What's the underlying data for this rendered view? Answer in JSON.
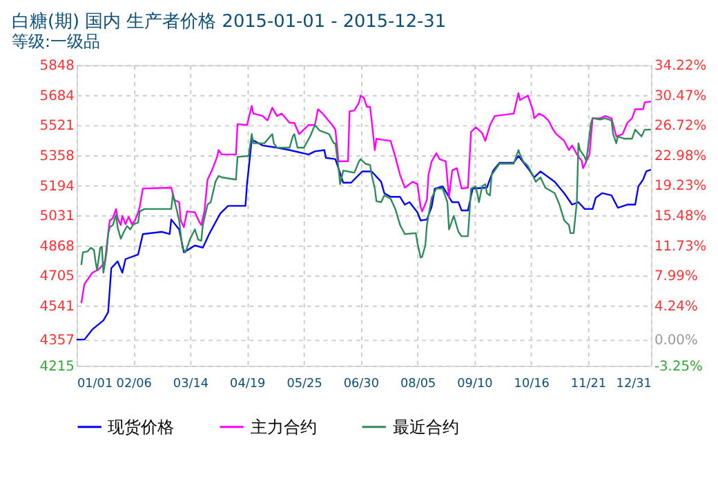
{
  "chart_data": {
    "type": "line",
    "title": "白糖(期) 国内 生产者价格 2015-01-01 - 2015-12-31",
    "subtitle": "等级:一级品",
    "xlim": [
      "2015-01-01",
      "2015-12-31"
    ],
    "xticks": [
      {
        "value": "2015-01-01",
        "label": "01/01"
      },
      {
        "value": "2015-02-06",
        "label": "02/06"
      },
      {
        "value": "2015-03-14",
        "label": "03/14"
      },
      {
        "value": "2015-04-19",
        "label": "04/19"
      },
      {
        "value": "2015-05-25",
        "label": "05/25"
      },
      {
        "value": "2015-06-30",
        "label": "06/30"
      },
      {
        "value": "2015-08-05",
        "label": "08/05"
      },
      {
        "value": "2015-09-10",
        "label": "09/10"
      },
      {
        "value": "2015-10-16",
        "label": "10/16"
      },
      {
        "value": "2015-11-21",
        "label": "11/21"
      },
      {
        "value": "2015-12-31",
        "label": "12/31"
      }
    ],
    "ylim": [
      4215,
      5848
    ],
    "yticks": [
      4215,
      4357,
      4541,
      4705,
      4868,
      5031,
      5194,
      5358,
      5521,
      5684,
      5848
    ],
    "y2lim": [
      -3.25,
      34.22
    ],
    "y2ticks": [
      {
        "value": -3.25,
        "label": "-3.25%"
      },
      {
        "value": 0,
        "label": "0.00%"
      },
      {
        "value": 4.24,
        "label": "4.24%"
      },
      {
        "value": 7.99,
        "label": "7.99%"
      },
      {
        "value": 11.73,
        "label": "11.73%"
      },
      {
        "value": 15.48,
        "label": "15.48%"
      },
      {
        "value": 19.23,
        "label": "19.23%"
      },
      {
        "value": 22.98,
        "label": "22.98%"
      },
      {
        "value": 26.72,
        "label": "26.72%"
      },
      {
        "value": 30.47,
        "label": "30.47%"
      },
      {
        "value": 34.22,
        "label": "34.22%"
      }
    ],
    "grid": true,
    "legend": "bottom",
    "marker": "none",
    "line_style": "solid",
    "series": [
      {
        "name": "现货价格",
        "color": "#0000ff",
        "x": [
          "2015-01-01",
          "2015-01-06",
          "2015-01-11",
          "2015-01-18",
          "2015-01-21",
          "2015-01-23",
          "2015-01-27",
          "2015-01-30",
          "2015-02-01",
          "2015-02-09",
          "2015-02-12",
          "2015-02-24",
          "2015-03-01",
          "2015-03-02",
          "2015-03-07",
          "2015-03-10",
          "2015-03-17",
          "2015-03-22",
          "2015-03-26",
          "2015-04-02",
          "2015-04-07",
          "2015-04-18",
          "2015-04-19",
          "2015-04-22",
          "2015-04-29",
          "2015-05-08",
          "2015-05-16",
          "2015-05-28",
          "2015-06-01",
          "2015-06-07",
          "2015-06-08",
          "2015-06-14",
          "2015-06-19",
          "2015-06-24",
          "2015-07-01",
          "2015-07-07",
          "2015-07-13",
          "2015-07-15",
          "2015-07-19",
          "2015-07-25",
          "2015-07-28",
          "2015-07-31",
          "2015-08-05",
          "2015-08-07",
          "2015-08-11",
          "2015-08-14",
          "2015-08-16",
          "2015-08-21",
          "2015-08-27",
          "2015-08-31",
          "2015-09-02",
          "2015-09-06",
          "2015-09-09",
          "2015-09-18",
          "2015-09-22",
          "2015-09-26",
          "2015-10-05",
          "2015-10-08",
          "2015-10-14",
          "2015-10-18",
          "2015-10-22",
          "2015-10-31",
          "2015-11-06",
          "2015-11-11",
          "2015-11-15",
          "2015-11-19",
          "2015-11-24",
          "2015-11-26",
          "2015-11-30",
          "2015-12-06",
          "2015-12-10",
          "2015-12-16",
          "2015-12-21",
          "2015-12-23",
          "2015-12-26",
          "2015-12-28",
          "2015-12-31"
        ],
        "values": [
          4357,
          4357,
          4412,
          4461,
          4506,
          4745,
          4782,
          4720,
          4794,
          4819,
          4930,
          4942,
          4930,
          5009,
          4955,
          4831,
          4868,
          4856,
          4930,
          5041,
          5083,
          5083,
          5201,
          5443,
          5411,
          5399,
          5386,
          5362,
          5379,
          5386,
          5344,
          5337,
          5209,
          5209,
          5270,
          5270,
          5214,
          5152,
          5132,
          5132,
          5090,
          5103,
          5048,
          5004,
          5009,
          5078,
          5177,
          5189,
          5103,
          5103,
          5058,
          5058,
          5177,
          5182,
          5275,
          5317,
          5317,
          5354,
          5288,
          5238,
          5270,
          5214,
          5152,
          5090,
          5103,
          5066,
          5066,
          5127,
          5152,
          5140,
          5073,
          5090,
          5090,
          5189,
          5226,
          5270,
          5280
        ]
      },
      {
        "name": "主力合约",
        "color": "#ff00ff",
        "x": [
          "2015-01-04",
          "2015-01-05",
          "2015-01-06",
          "2015-01-08",
          "2015-01-11",
          "2015-01-15",
          "2015-01-17",
          "2015-01-19",
          "2015-01-21",
          "2015-01-22",
          "2015-01-24",
          "2015-01-26",
          "2015-01-27",
          "2015-01-29",
          "2015-01-30",
          "2015-02-01",
          "2015-02-03",
          "2015-02-05",
          "2015-02-07",
          "2015-02-09",
          "2015-02-10",
          "2015-02-12",
          "2015-03-02",
          "2015-03-04",
          "2015-03-07",
          "2015-03-08",
          "2015-03-10",
          "2015-03-12",
          "2015-03-17",
          "2015-03-20",
          "2015-03-21",
          "2015-03-23",
          "2015-03-25",
          "2015-03-28",
          "2015-03-31",
          "2015-04-01",
          "2015-04-03",
          "2015-04-12",
          "2015-04-13",
          "2015-04-19",
          "2015-04-22",
          "2015-04-23",
          "2015-04-29",
          "2015-05-02",
          "2015-05-05",
          "2015-05-08",
          "2015-05-11",
          "2015-05-13",
          "2015-05-16",
          "2015-05-19",
          "2015-05-22",
          "2015-05-25",
          "2015-05-28",
          "2015-06-01",
          "2015-06-03",
          "2015-06-06",
          "2015-06-12",
          "2015-06-14",
          "2015-06-16",
          "2015-06-22",
          "2015-06-23",
          "2015-06-26",
          "2015-06-29",
          "2015-06-30",
          "2015-07-02",
          "2015-07-04",
          "2015-07-06",
          "2015-07-07",
          "2015-07-09",
          "2015-07-10",
          "2015-07-13",
          "2015-07-19",
          "2015-07-22",
          "2015-07-25",
          "2015-07-28",
          "2015-08-02",
          "2015-08-05",
          "2015-08-07",
          "2015-08-08",
          "2015-08-11",
          "2015-08-12",
          "2015-08-14",
          "2015-08-17",
          "2015-08-19",
          "2015-08-23",
          "2015-08-25",
          "2015-08-27",
          "2015-08-30",
          "2015-09-02",
          "2015-09-06",
          "2015-09-08",
          "2015-09-11",
          "2015-09-15",
          "2015-09-17",
          "2015-09-20",
          "2015-09-23",
          "2015-10-05",
          "2015-10-08",
          "2015-10-09",
          "2015-10-14",
          "2015-10-17",
          "2015-10-18",
          "2015-10-21",
          "2015-10-24",
          "2015-10-27",
          "2015-10-30",
          "2015-11-01",
          "2015-11-06",
          "2015-11-09",
          "2015-11-11",
          "2015-11-15",
          "2015-11-17",
          "2015-11-18",
          "2015-11-20",
          "2015-11-22",
          "2015-11-24",
          "2015-11-29",
          "2015-12-02",
          "2015-12-06",
          "2015-12-09",
          "2015-12-13",
          "2015-12-16",
          "2015-12-19",
          "2015-12-21",
          "2015-12-26",
          "2015-12-27",
          "2015-12-31"
        ],
        "values": [
          4555,
          4609,
          4659,
          4683,
          4720,
          4738,
          4757,
          4782,
          4930,
          5004,
          5016,
          5066,
          5016,
          4979,
          5029,
          4984,
          5024,
          4984,
          5004,
          5048,
          5078,
          5177,
          5182,
          5115,
          5103,
          5004,
          4967,
          5053,
          5048,
          4992,
          4979,
          5053,
          5226,
          5280,
          5349,
          5386,
          5362,
          5362,
          5527,
          5522,
          5626,
          5584,
          5571,
          5547,
          5616,
          5571,
          5584,
          5564,
          5534,
          5534,
          5473,
          5497,
          5522,
          5522,
          5608,
          5584,
          5522,
          5497,
          5325,
          5325,
          5596,
          5601,
          5645,
          5682,
          5670,
          5621,
          5621,
          5547,
          5386,
          5448,
          5443,
          5436,
          5349,
          5251,
          5182,
          5214,
          5201,
          5078,
          5053,
          5115,
          5251,
          5325,
          5369,
          5337,
          5325,
          5127,
          5275,
          5288,
          5177,
          5182,
          5485,
          5510,
          5478,
          5436,
          5522,
          5571,
          5584,
          5695,
          5658,
          5682,
          5608,
          5559,
          5584,
          5571,
          5547,
          5497,
          5473,
          5436,
          5386,
          5411,
          5349,
          5330,
          5288,
          5325,
          5362,
          5559,
          5559,
          5571,
          5559,
          5460,
          5473,
          5534,
          5559,
          5608,
          5608,
          5645,
          5650
        ]
      },
      {
        "name": "最近合约",
        "color": "#2e8b57",
        "x": [
          "2015-01-04",
          "2015-01-05",
          "2015-01-08",
          "2015-01-10",
          "2015-01-12",
          "2015-01-13",
          "2015-01-14",
          "2015-01-16",
          "2015-01-17",
          "2015-01-18",
          "2015-01-20",
          "2015-01-21",
          "2015-01-22",
          "2015-01-24",
          "2015-01-26",
          "2015-01-27",
          "2015-01-29",
          "2015-01-31",
          "2015-02-02",
          "2015-02-04",
          "2015-02-06",
          "2015-02-09",
          "2015-02-10",
          "2015-02-13",
          "2015-03-02",
          "2015-03-03",
          "2015-03-05",
          "2015-03-07",
          "2015-03-09",
          "2015-03-11",
          "2015-03-14",
          "2015-03-17",
          "2015-03-19",
          "2015-03-21",
          "2015-03-22",
          "2015-03-25",
          "2015-03-27",
          "2015-03-30",
          "2015-04-01",
          "2015-04-03",
          "2015-04-12",
          "2015-04-13",
          "2015-04-20",
          "2015-04-22",
          "2015-04-23",
          "2015-04-30",
          "2015-05-05",
          "2015-05-06",
          "2015-05-08",
          "2015-05-16",
          "2015-05-18",
          "2015-05-19",
          "2015-05-21",
          "2015-05-25",
          "2015-05-29",
          "2015-06-01",
          "2015-06-04",
          "2015-06-10",
          "2015-06-13",
          "2015-06-14",
          "2015-06-16",
          "2015-06-17",
          "2015-06-19",
          "2015-06-26",
          "2015-06-29",
          "2015-06-30",
          "2015-07-03",
          "2015-07-06",
          "2015-07-07",
          "2015-07-09",
          "2015-07-10",
          "2015-07-13",
          "2015-07-15",
          "2015-07-19",
          "2015-07-22",
          "2015-07-25",
          "2015-07-28",
          "2015-08-04",
          "2015-08-05",
          "2015-08-07",
          "2015-08-08",
          "2015-08-10",
          "2015-08-11",
          "2015-08-14",
          "2015-08-17",
          "2015-08-21",
          "2015-08-24",
          "2015-08-25",
          "2015-08-27",
          "2015-08-28",
          "2015-08-31",
          "2015-09-02",
          "2015-09-06",
          "2015-09-08",
          "2015-09-11",
          "2015-09-13",
          "2015-09-15",
          "2015-09-17",
          "2015-09-18",
          "2015-09-20",
          "2015-09-21",
          "2015-09-26",
          "2015-10-05",
          "2015-10-08",
          "2015-10-09",
          "2015-10-11",
          "2015-10-14",
          "2015-10-17",
          "2015-10-19",
          "2015-10-22",
          "2015-10-25",
          "2015-10-31",
          "2015-11-03",
          "2015-11-06",
          "2015-11-09",
          "2015-11-10",
          "2015-11-12",
          "2015-11-14",
          "2015-11-15",
          "2015-11-16",
          "2015-11-19",
          "2015-11-20",
          "2015-11-23",
          "2015-11-24",
          "2015-11-29",
          "2015-12-02",
          "2015-12-06",
          "2015-12-07",
          "2015-12-09",
          "2015-12-10",
          "2015-12-14",
          "2015-12-19",
          "2015-12-21",
          "2015-12-25",
          "2015-12-27",
          "2015-12-31"
        ],
        "values": [
          4762,
          4831,
          4836,
          4856,
          4844,
          4782,
          4733,
          4856,
          4861,
          4720,
          4831,
          4930,
          4967,
          4979,
          5034,
          4967,
          4905,
          4942,
          4974,
          4955,
          4984,
          4992,
          5053,
          5066,
          5066,
          5147,
          5078,
          5004,
          4856,
          4831,
          4905,
          4955,
          4900,
          4893,
          4979,
          5090,
          5103,
          5214,
          5246,
          5238,
          5226,
          5349,
          5354,
          5473,
          5423,
          5423,
          5473,
          5423,
          5399,
          5399,
          5460,
          5473,
          5399,
          5399,
          5460,
          5522,
          5492,
          5473,
          5423,
          5423,
          5288,
          5201,
          5275,
          5263,
          5325,
          5337,
          5312,
          5305,
          5251,
          5177,
          5108,
          5103,
          5140,
          5122,
          5066,
          4979,
          4930,
          4935,
          4881,
          4802,
          4807,
          4868,
          4979,
          5127,
          5177,
          5177,
          5103,
          4955,
          5004,
          5029,
          4942,
          4918,
          4918,
          5177,
          5189,
          5103,
          5189,
          5201,
          5152,
          5140,
          5251,
          5312,
          5312,
          5386,
          5362,
          5325,
          5300,
          5251,
          5214,
          5238,
          5182,
          5152,
          5090,
          5004,
          4979,
          4935,
          4935,
          5103,
          5423,
          5386,
          5349,
          5325,
          5534,
          5559,
          5552,
          5559,
          5547,
          5473,
          5423,
          5460,
          5448,
          5448,
          5497,
          5460,
          5497,
          5497
        ]
      }
    ]
  }
}
